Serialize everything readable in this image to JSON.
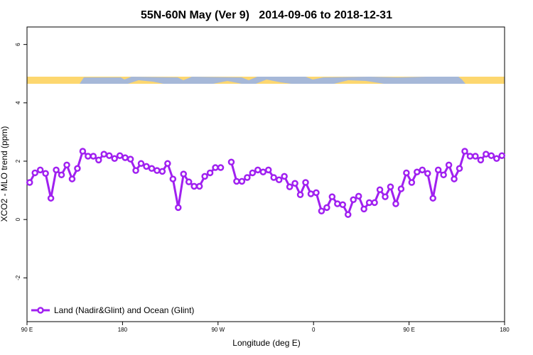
{
  "chart_data": {
    "type": "line",
    "title": "55N-60N May (Ver 9)   2014-09-06 to 2018-12-31",
    "x_label": "Longitude (deg E)",
    "y_label": "XCO2 - MLO trend (ppm)",
    "x": [
      92.5,
      97.5,
      102.5,
      107.5,
      112.5,
      117.5,
      122.5,
      127.5,
      132.5,
      137.5,
      142.5,
      147.5,
      152.5,
      157.5,
      162.5,
      167.5,
      172.5,
      177.5,
      182.5,
      187.5,
      192.5,
      197.5,
      202.5,
      207.5,
      212.5,
      217.5,
      222.5,
      227.5,
      232.5,
      237.5,
      242.5,
      247.5,
      252.5,
      257.5,
      262.5,
      267.5,
      272.5,
      277.5,
      282.5,
      287.5,
      292.5,
      297.5,
      302.5,
      307.5,
      312.5,
      317.5,
      322.5,
      327.5,
      332.5,
      337.5,
      342.5,
      347.5,
      352.5,
      357.5,
      362.5,
      367.5,
      372.5,
      377.5,
      382.5,
      387.5,
      392.5,
      397.5,
      402.5,
      407.5,
      412.5,
      417.5,
      422.5,
      427.5,
      432.5,
      437.5,
      442.5,
      447.5,
      452.5,
      457.5,
      462.5,
      467.5,
      472.5,
      477.5,
      482.5,
      487.5,
      492.5,
      497.5,
      502.5,
      507.5,
      512.5,
      517.5,
      522.5,
      527.5,
      532.5,
      537.5
    ],
    "series": [
      {
        "name": "Land (Nadir&Glint) and Ocean (Glint)",
        "color": "#a020f0",
        "values": [
          1.27,
          1.6,
          1.7,
          1.58,
          0.73,
          1.7,
          1.53,
          1.87,
          1.39,
          1.75,
          2.34,
          2.17,
          2.17,
          2.04,
          2.24,
          2.19,
          2.09,
          2.19,
          2.12,
          2.07,
          1.68,
          1.92,
          1.82,
          1.75,
          1.68,
          1.65,
          1.92,
          1.39,
          0.41,
          1.56,
          1.29,
          1.14,
          1.14,
          1.48,
          1.6,
          1.78,
          1.78,
          null,
          1.97,
          1.31,
          1.31,
          1.44,
          1.6,
          1.7,
          1.63,
          1.7,
          1.44,
          1.36,
          1.48,
          1.12,
          1.24,
          0.85,
          1.27,
          0.88,
          0.92,
          0.29,
          0.41,
          0.78,
          0.54,
          0.51,
          0.17,
          0.68,
          0.8,
          0.36,
          0.58,
          0.58,
          1.02,
          0.78,
          1.12,
          0.54,
          1.05,
          1.6,
          1.27,
          1.63,
          1.7,
          1.58,
          0.73,
          1.7,
          1.53,
          1.87,
          1.39,
          1.75,
          2.34,
          2.17,
          2.17,
          2.04,
          2.24,
          2.19,
          2.09,
          2.19
        ]
      }
    ],
    "xlim": [
      90,
      540
    ],
    "xticks": [
      {
        "value": 90,
        "label": "90 E"
      },
      {
        "value": 180,
        "label": "180"
      },
      {
        "value": 270,
        "label": "90 W"
      },
      {
        "value": 360,
        "label": "0"
      },
      {
        "value": 450,
        "label": "90 E"
      },
      {
        "value": 540,
        "label": "180"
      }
    ],
    "ylim": [
      -3.5,
      6.6
    ],
    "yticks": [
      -2,
      0,
      2,
      4,
      6
    ],
    "legend": "bottom-left"
  }
}
